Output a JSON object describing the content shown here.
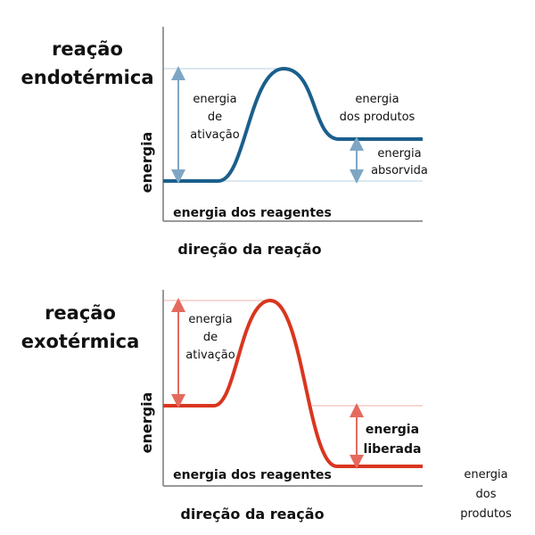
{
  "endothermic": {
    "title": [
      "reação",
      "endotérmica"
    ],
    "y_axis_label": "energia",
    "x_axis_label": "direção da reação",
    "activation_label": [
      "energia",
      "de",
      "ativação"
    ],
    "products_label": [
      "energia",
      "dos produtos"
    ],
    "delta_label": [
      "energia",
      "absorvida"
    ],
    "reactants_label": "energia dos reagentes"
  },
  "exothermic": {
    "title": [
      "reação",
      "exotérmica"
    ],
    "y_axis_label": "energia",
    "x_axis_label": "direção da reação",
    "activation_label": [
      "energia",
      "de",
      "ativação"
    ],
    "delta_label": [
      "energia",
      "liberada"
    ],
    "reactants_label": "energia dos reagentes",
    "products_label": [
      "energia",
      "dos",
      "produtos"
    ]
  }
}
